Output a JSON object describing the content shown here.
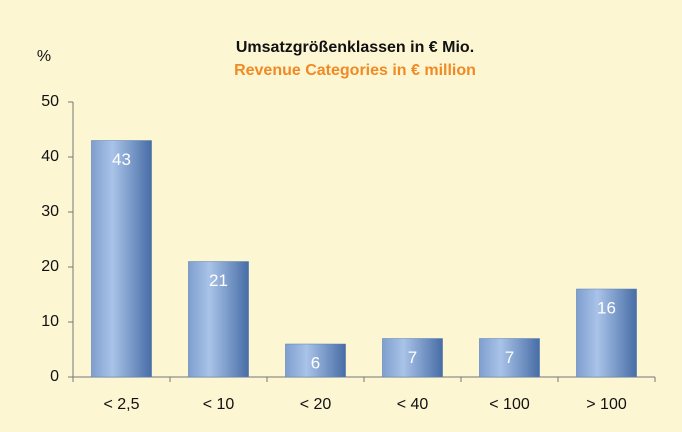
{
  "chart_data": {
    "type": "bar",
    "title": "Umsatzgrößenklassen in € Mio.",
    "subtitle": "Revenue Categories in € million",
    "y_label": "%",
    "categories": [
      "< 2,5",
      "< 10",
      "< 20",
      "< 40",
      "< 100",
      "> 100"
    ],
    "values": [
      43,
      21,
      6,
      7,
      7,
      16
    ],
    "color": "#5b80b8",
    "ylim": [
      0,
      50
    ],
    "yticks": [
      0,
      10,
      20,
      30,
      40,
      50
    ],
    "grid": false
  }
}
